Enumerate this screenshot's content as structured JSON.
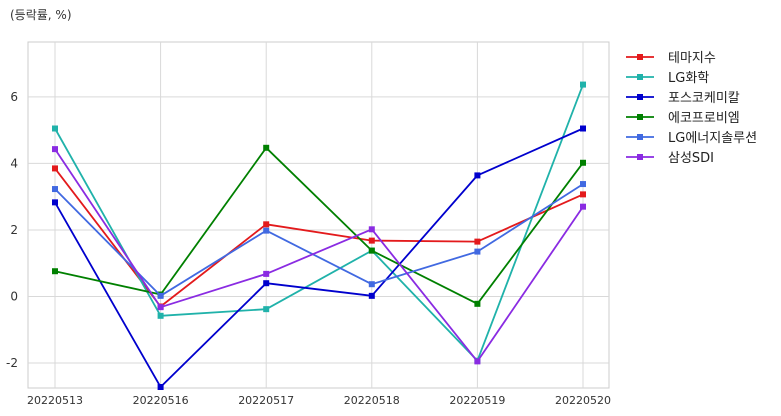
{
  "unit_label": "(등락률, %)",
  "chart_data": {
    "type": "line",
    "title": "",
    "xlabel": "",
    "ylabel": "(등락률, %)",
    "categories": [
      "20220513",
      "20220516",
      "20220517",
      "20220518",
      "20220519",
      "20220520"
    ],
    "ylim": [
      -2.75,
      7.65
    ],
    "yticks": [
      -2,
      0,
      2,
      4,
      6
    ],
    "grid": true,
    "legend_position": "right",
    "series": [
      {
        "name": "테마지수",
        "color": "#e31a1c",
        "values": [
          3.85,
          -0.3,
          2.17,
          1.68,
          1.65,
          3.07
        ]
      },
      {
        "name": "LG화학",
        "color": "#20b2aa",
        "values": [
          5.05,
          -0.58,
          -0.38,
          1.38,
          -1.93,
          6.37
        ]
      },
      {
        "name": "포스코케미칼",
        "color": "#0000cd",
        "values": [
          2.83,
          -2.72,
          0.4,
          0.02,
          3.64,
          5.05
        ]
      },
      {
        "name": "에코프로비엠",
        "color": "#008000",
        "values": [
          0.76,
          0.06,
          4.47,
          1.38,
          -0.22,
          4.02
        ]
      },
      {
        "name": "LG에너지솔루션",
        "color": "#4169e1",
        "values": [
          3.23,
          0.02,
          1.98,
          0.37,
          1.35,
          3.38
        ]
      },
      {
        "name": "삼성SDI",
        "color": "#8a2be2",
        "values": [
          4.43,
          -0.32,
          0.68,
          2.02,
          -1.95,
          2.7
        ]
      }
    ]
  }
}
